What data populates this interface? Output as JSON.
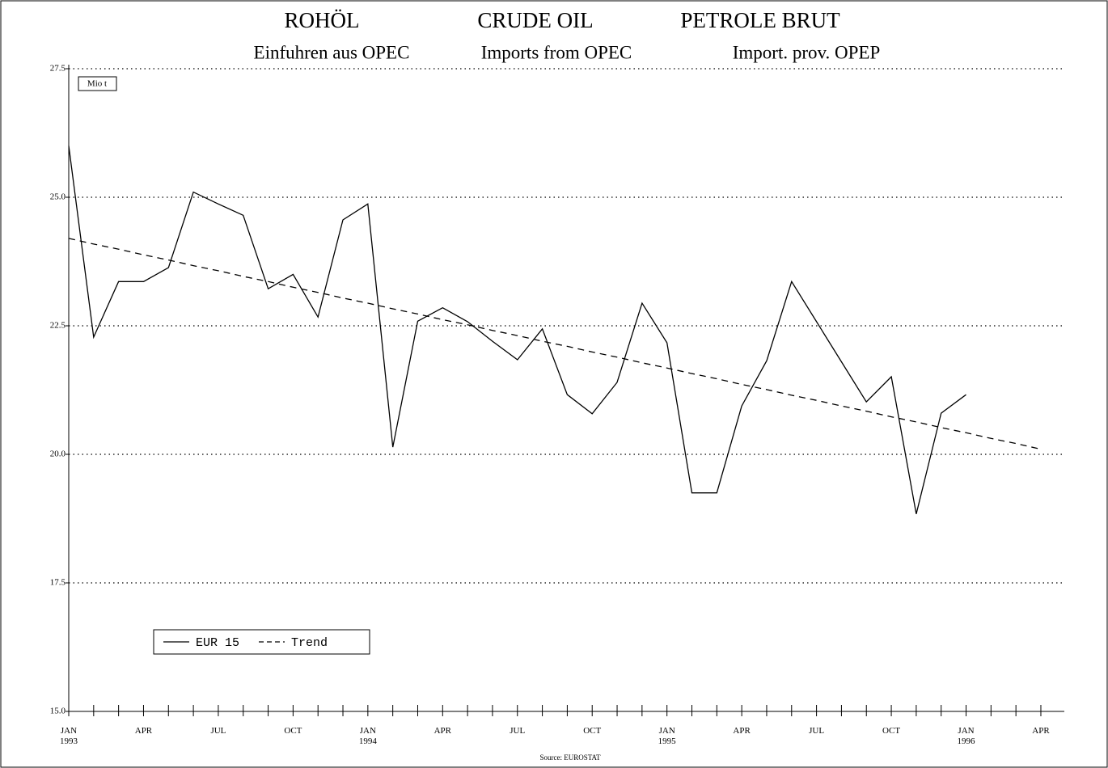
{
  "chart_data": {
    "type": "line",
    "title": [
      "ROHÖL",
      "CRUDE OIL",
      "PETROLE BRUT"
    ],
    "subtitle": [
      "Einfuhren aus OPEC",
      "Imports from OPEC",
      "Import. prov. OPEP"
    ],
    "y_axis_label": "Mio t",
    "source": "Source: EUROSTAT",
    "categories": [
      "JAN 1993",
      null,
      null,
      "APR",
      null,
      null,
      "JUL",
      null,
      null,
      "OCT",
      null,
      null,
      "JAN 1994",
      null,
      null,
      "APR",
      null,
      null,
      "JUL",
      null,
      null,
      "OCT",
      null,
      null,
      "JAN 1995",
      null,
      null,
      "APR",
      null,
      null,
      "JUL",
      null,
      null,
      "OCT",
      null,
      null,
      "JAN 1996",
      null,
      null,
      "APR"
    ],
    "series": [
      {
        "name": "EUR 15",
        "color": "#000000",
        "style": "solid",
        "values": [
          26.0,
          22.28,
          23.36,
          23.36,
          23.63,
          25.1,
          24.87,
          24.65,
          23.22,
          23.5,
          22.67,
          24.56,
          24.87,
          20.14,
          22.59,
          22.85,
          22.58,
          22.2,
          21.84,
          22.44,
          21.16,
          20.79,
          21.4,
          22.94,
          22.17,
          19.25,
          19.25,
          20.94,
          21.82,
          23.36,
          22.58,
          21.8,
          21.02,
          21.51,
          18.84,
          20.8,
          21.16,
          null,
          null,
          null
        ]
      },
      {
        "name": "Trend",
        "color": "#000000",
        "style": "dashed",
        "values": [
          24.2,
          24.09,
          23.99,
          23.88,
          23.78,
          23.67,
          23.57,
          23.46,
          23.36,
          23.25,
          23.15,
          23.04,
          22.94,
          22.83,
          22.73,
          22.62,
          22.52,
          22.41,
          22.31,
          22.2,
          22.1,
          21.99,
          21.89,
          21.78,
          21.68,
          21.57,
          21.47,
          21.36,
          21.26,
          21.15,
          21.05,
          20.94,
          20.84,
          20.73,
          20.63,
          20.52,
          20.42,
          20.31,
          20.21,
          20.1
        ]
      }
    ],
    "ylim": [
      15,
      27.5
    ],
    "yticks": [
      {
        "value": 15,
        "label": "15.0"
      },
      17.5,
      {
        "value": 20,
        "label": "20.0"
      },
      22.5,
      {
        "value": 25,
        "label": "25.0"
      },
      27.5
    ],
    "grid": true,
    "legend": "lower left"
  }
}
